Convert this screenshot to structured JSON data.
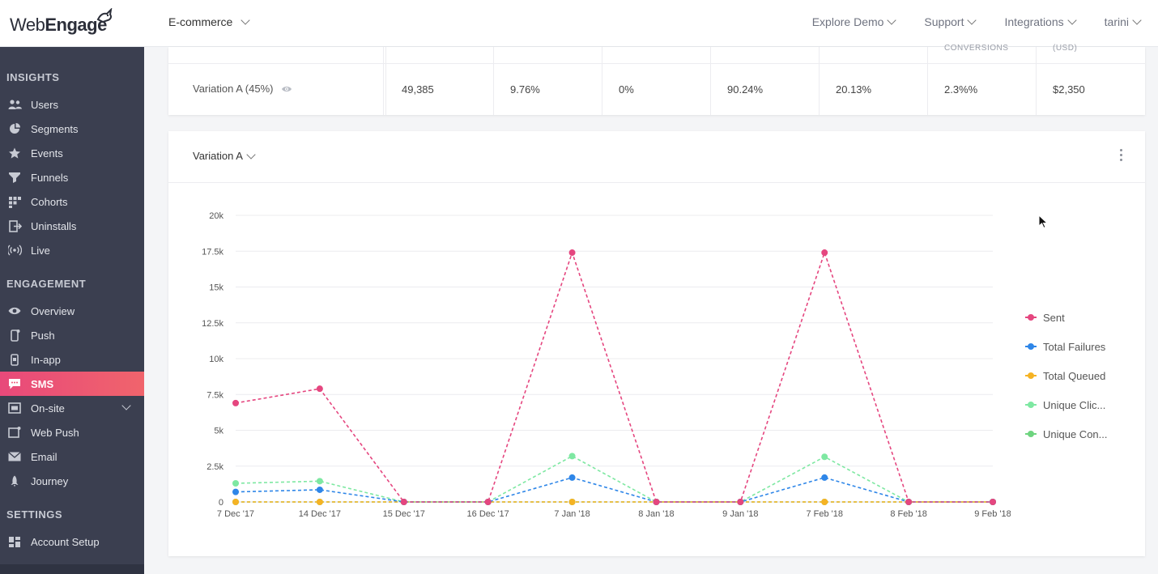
{
  "header": {
    "logo_text_light": "Web",
    "logo_text_bold": "Engage",
    "project": "E-commerce",
    "nav": [
      "Explore Demo",
      "Support",
      "Integrations",
      "tarini"
    ]
  },
  "sidebar": {
    "sections": [
      {
        "label": "INSIGHTS",
        "items": [
          {
            "label": "Users",
            "icon": "users-icon"
          },
          {
            "label": "Segments",
            "icon": "pie-chart-icon"
          },
          {
            "label": "Events",
            "icon": "star-icon"
          },
          {
            "label": "Funnels",
            "icon": "funnel-icon"
          },
          {
            "label": "Cohorts",
            "icon": "grid-icon"
          },
          {
            "label": "Uninstalls",
            "icon": "exit-icon"
          },
          {
            "label": "Live",
            "icon": "broadcast-icon"
          }
        ]
      },
      {
        "label": "ENGAGEMENT",
        "items": [
          {
            "label": "Overview",
            "icon": "eye-icon"
          },
          {
            "label": "Push",
            "icon": "mobile-icon"
          },
          {
            "label": "In-app",
            "icon": "phone-icon"
          },
          {
            "label": "SMS",
            "icon": "chat-icon",
            "active": true
          },
          {
            "label": "On-site",
            "icon": "window-icon",
            "expandable": true
          },
          {
            "label": "Web Push",
            "icon": "browser-icon"
          },
          {
            "label": "Email",
            "icon": "mail-icon"
          },
          {
            "label": "Journey",
            "icon": "rocket-icon"
          }
        ]
      },
      {
        "label": "SETTINGS",
        "items": [
          {
            "label": "Account Setup",
            "icon": "dashboard-icon"
          }
        ]
      }
    ]
  },
  "table": {
    "partial_headers": [
      "CONVERSIONS",
      "(USD)"
    ],
    "row": {
      "variation": "Variation A (45%)",
      "values": [
        "49,385",
        "9.76%",
        "0%",
        "90.24%",
        "20.13%",
        "2.3%%",
        "$2,350"
      ]
    }
  },
  "chart_panel": {
    "selector": "Variation A"
  },
  "chart_data": {
    "type": "line",
    "categories": [
      "7 Dec '17",
      "14 Dec '17",
      "15 Dec '17",
      "16 Dec '17",
      "7 Jan '18",
      "8 Jan '18",
      "9 Jan '18",
      "7 Feb '18",
      "8 Feb '18",
      "9 Feb '18"
    ],
    "y_ticks": [
      "0",
      "2.5k",
      "5k",
      "7.5k",
      "10k",
      "12.5k",
      "15k",
      "17.5k",
      "20k"
    ],
    "ylim": [
      0,
      20000
    ],
    "grid": true,
    "legend_position": "right",
    "series": [
      {
        "name": "Sent",
        "color": "#e5467f",
        "values": [
          6900,
          7900,
          0,
          0,
          17400,
          0,
          0,
          17400,
          0,
          0
        ]
      },
      {
        "name": "Total Failures",
        "color": "#2e86e8",
        "values": [
          700,
          850,
          0,
          0,
          1700,
          0,
          0,
          1700,
          0,
          0
        ]
      },
      {
        "name": "Total Queued",
        "color": "#f5b324",
        "values": [
          0,
          0,
          0,
          0,
          0,
          0,
          0,
          0,
          0,
          0
        ]
      },
      {
        "name": "Unique Clic...",
        "color": "#7ee8a2",
        "values": [
          1300,
          1450,
          0,
          0,
          3200,
          0,
          0,
          3150,
          0,
          0
        ]
      },
      {
        "name": "Unique Con...",
        "color": "#6ed47f",
        "values": [
          0,
          0,
          0,
          0,
          0,
          0,
          0,
          0,
          0,
          0
        ]
      }
    ]
  }
}
